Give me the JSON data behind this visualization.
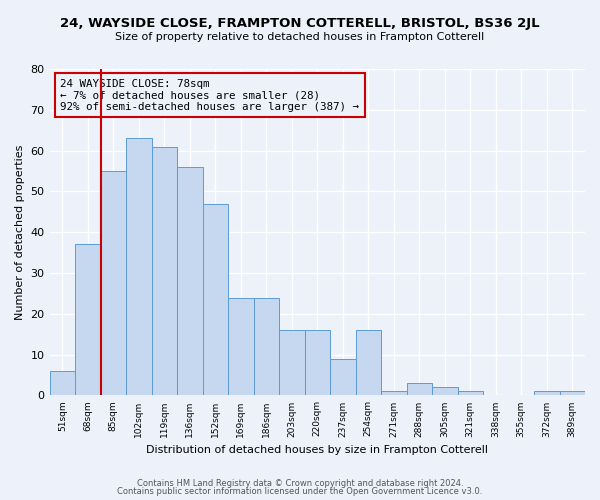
{
  "title": "24, WAYSIDE CLOSE, FRAMPTON COTTERELL, BRISTOL, BS36 2JL",
  "subtitle": "Size of property relative to detached houses in Frampton Cotterell",
  "xlabel": "Distribution of detached houses by size in Frampton Cotterell",
  "ylabel": "Number of detached properties",
  "bin_labels": [
    "51sqm",
    "68sqm",
    "85sqm",
    "102sqm",
    "119sqm",
    "136sqm",
    "152sqm",
    "169sqm",
    "186sqm",
    "203sqm",
    "220sqm",
    "237sqm",
    "254sqm",
    "271sqm",
    "288sqm",
    "305sqm",
    "321sqm",
    "338sqm",
    "355sqm",
    "372sqm",
    "389sqm"
  ],
  "bar_values": [
    6,
    37,
    55,
    63,
    61,
    56,
    47,
    24,
    24,
    16,
    16,
    9,
    16,
    1,
    3,
    2,
    1,
    0,
    0,
    1,
    1
  ],
  "bar_color": "#c5d8f0",
  "bar_edge_color": "#5b9bd5",
  "vline_color": "#cc0000",
  "annotation_title": "24 WAYSIDE CLOSE: 78sqm",
  "annotation_line1": "← 7% of detached houses are smaller (28)",
  "annotation_line2": "92% of semi-detached houses are larger (387) →",
  "annotation_box_color": "#cc0000",
  "ylim": [
    0,
    80
  ],
  "yticks": [
    0,
    10,
    20,
    30,
    40,
    50,
    60,
    70,
    80
  ],
  "footer1": "Contains HM Land Registry data © Crown copyright and database right 2024.",
  "footer2": "Contains public sector information licensed under the Open Government Licence v3.0.",
  "background_color": "#edf2fa",
  "grid_color": "#ffffff"
}
